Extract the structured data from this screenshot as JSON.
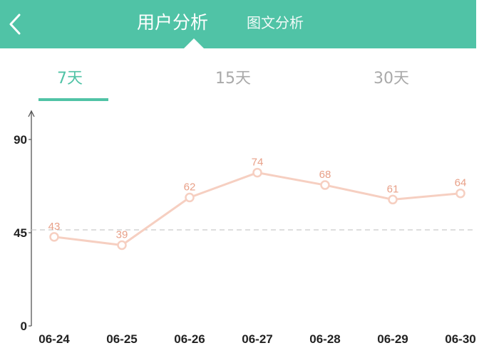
{
  "header": {
    "back_icon": "chevron-left-icon",
    "title": "用户分析",
    "secondary_tab": "图文分析"
  },
  "ranges": [
    {
      "label": "7天",
      "active": true
    },
    {
      "label": "15天",
      "active": false
    },
    {
      "label": "30天",
      "active": false
    }
  ],
  "colors": {
    "accent": "#50c3a6",
    "line": "#f6cfc1",
    "point_label": "#e8a088"
  },
  "chart_data": {
    "type": "line",
    "categories": [
      "06-24",
      "06-25",
      "06-26",
      "06-27",
      "06-28",
      "06-29",
      "06-30"
    ],
    "values": [
      43,
      39,
      62,
      74,
      68,
      61,
      64
    ],
    "y_ticks": [
      0,
      45,
      90
    ],
    "ylim": [
      0,
      90
    ],
    "reference_line": 45,
    "grid": false
  }
}
